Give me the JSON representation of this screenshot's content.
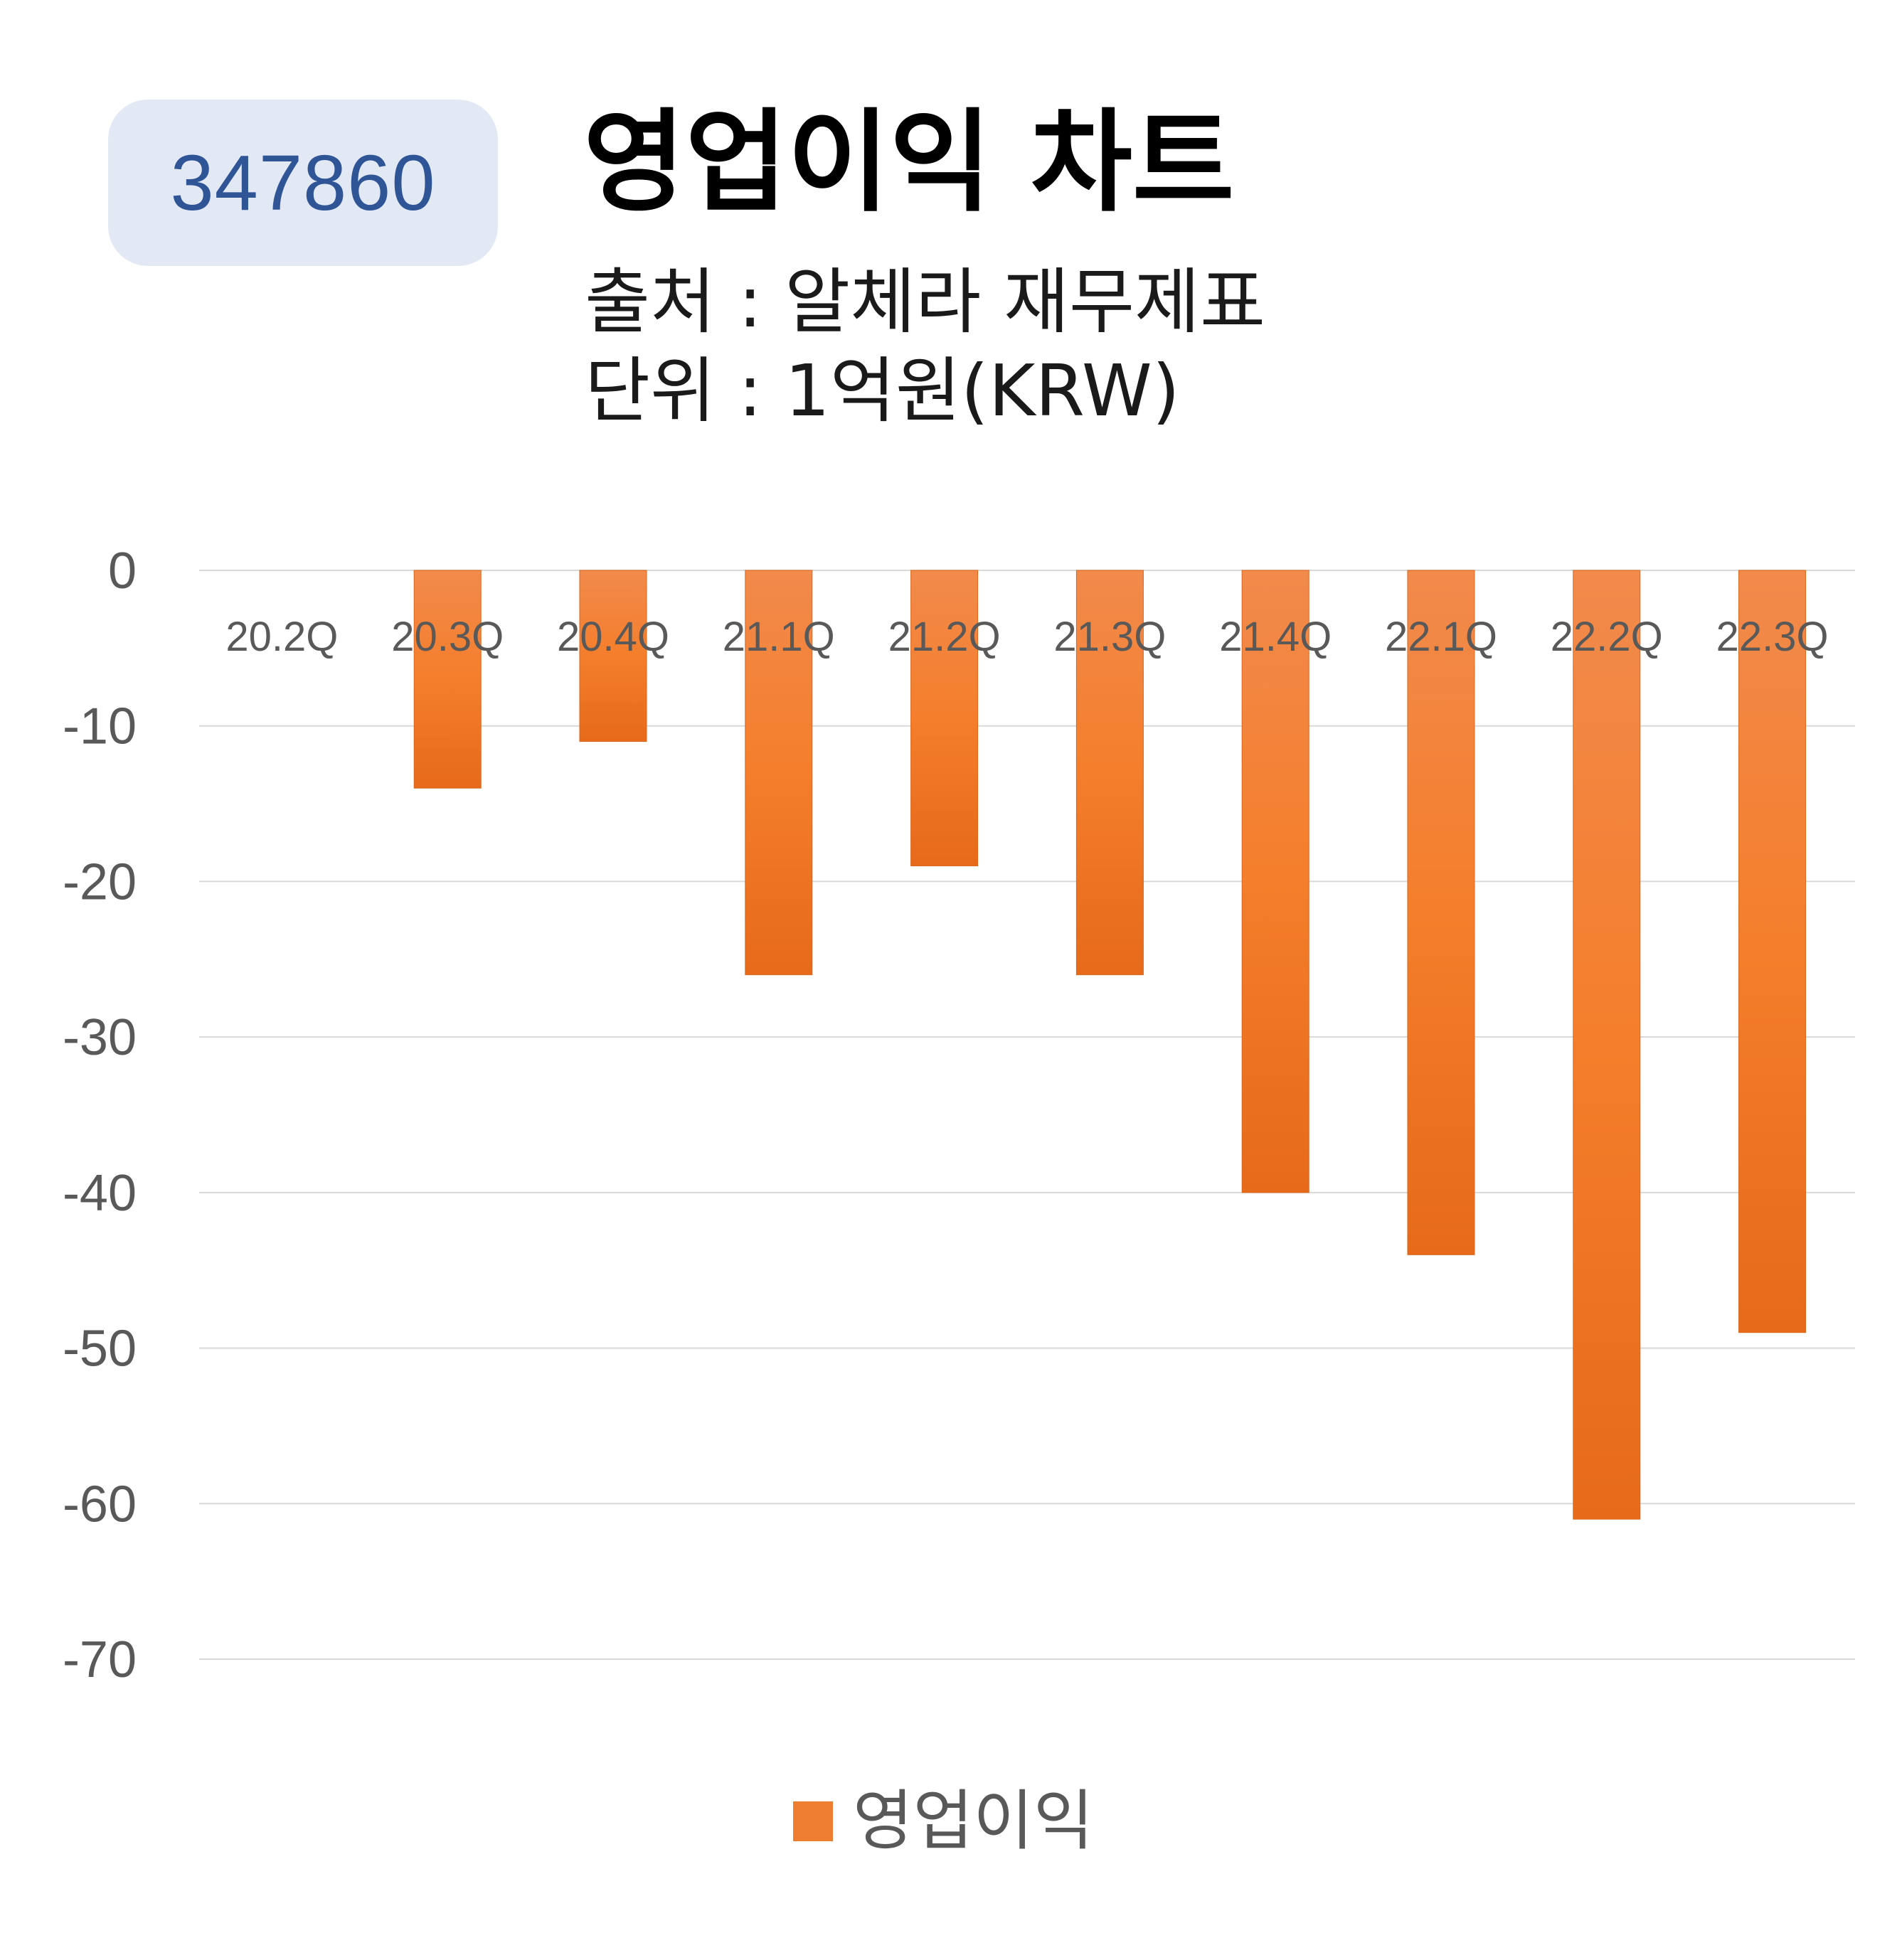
{
  "badge": {
    "code": "347860"
  },
  "header": {
    "title": "영업이익 차트",
    "source": "출처 : 알체라 재무제표",
    "unit": "단위 : 1억원(KRW)"
  },
  "colors": {
    "bar": "#ed7d31",
    "bar_light": "#f4a26b",
    "bar_dark": "#e06a1a",
    "grid": "#d9d9d9",
    "badge_bg": "#e3e9f4",
    "badge_text": "#2f5597"
  },
  "chart_data": {
    "type": "bar",
    "categories": [
      "20.2Q",
      "20.3Q",
      "20.4Q",
      "21.1Q",
      "21.2Q",
      "21.3Q",
      "21.4Q",
      "22.1Q",
      "22.2Q",
      "22.3Q"
    ],
    "series": [
      {
        "name": "영업이익",
        "values": [
          0,
          -14,
          -11,
          -26,
          -19,
          -26,
          -40,
          -44,
          -61,
          -49
        ]
      }
    ],
    "ylim": [
      -70,
      0
    ],
    "yticks": [
      0,
      -10,
      -20,
      -30,
      -40,
      -50,
      -60,
      -70
    ],
    "grid": true,
    "legend": "bottom-center"
  }
}
